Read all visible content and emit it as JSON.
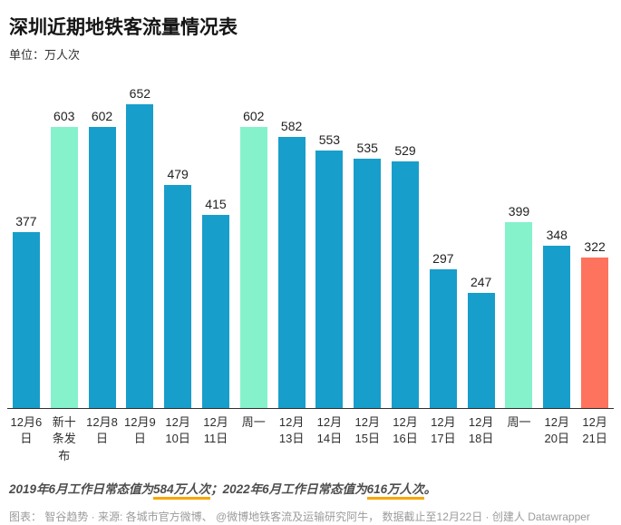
{
  "title": "深圳近期地铁客流量情况表",
  "subtitle": "单位：万人次",
  "chart_data": {
    "type": "bar",
    "title": "深圳近期地铁客流量情况表",
    "unit_label": "单位：万人次",
    "categories": [
      "12月6\n日",
      "新十\n条发\n布",
      "12月8\n日",
      "12月9\n日",
      "12月\n10日",
      "12月\n11日",
      "周一",
      "12月\n13日",
      "12月\n14日",
      "12月\n15日",
      "12月\n16日",
      "12月\n17日",
      "12月\n18日",
      "周一",
      "12月\n20日",
      "12月\n21日"
    ],
    "values": [
      377,
      603,
      602,
      652,
      479,
      415,
      602,
      582,
      553,
      535,
      529,
      297,
      247,
      399,
      348,
      322
    ],
    "bar_colors": [
      "teal",
      "green",
      "teal",
      "teal",
      "teal",
      "teal",
      "green",
      "teal",
      "teal",
      "teal",
      "teal",
      "teal",
      "teal",
      "green",
      "teal",
      "red"
    ],
    "palette": {
      "teal": "#189ECB",
      "green": "#85F2CC",
      "red": "#FD735D"
    },
    "ylim": [
      0,
      652
    ],
    "grid": false,
    "value_labels": true,
    "legend": "none"
  },
  "notes": {
    "segments": [
      {
        "text": "2019年6月工作日常态值为",
        "underline": false
      },
      {
        "text": "584万人次",
        "underline": true
      },
      {
        "text": "；2022年6月工作日常态值为",
        "underline": false
      },
      {
        "text": "616万人次",
        "underline": true
      },
      {
        "text": "。",
        "underline": false
      }
    ],
    "underline_color": "#f7a600"
  },
  "footer": "图表： 智谷趋势 · 来源: 各城市官方微博、 @微博地铁客流及运输研究阿牛， 数据截止至12月22日 · 创建人 Datawrapper"
}
